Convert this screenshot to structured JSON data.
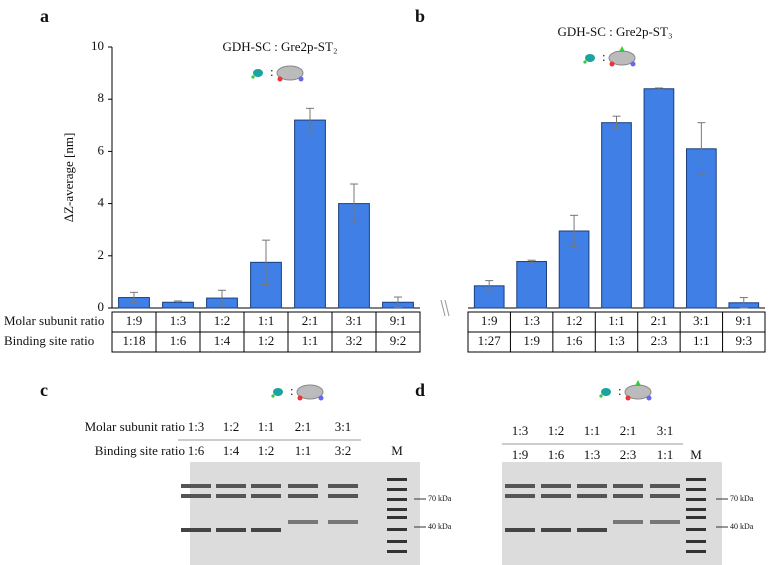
{
  "chart_data": [
    {
      "type": "bar",
      "panel": "a",
      "title": "GDH-SC : Gre2p-ST₂",
      "y_label": "ΔZ-average [nm]",
      "row_labels": [
        "Molar subunit ratio",
        "Binding site ratio"
      ],
      "categories": [
        "1:9",
        "1:3",
        "1:2",
        "1:1",
        "2:1",
        "3:1",
        "9:1"
      ],
      "binding_ratios": [
        "1:18",
        "1:6",
        "1:4",
        "1:2",
        "1:1",
        "3:2",
        "9:2"
      ],
      "values": [
        0.4,
        0.22,
        0.38,
        1.75,
        7.2,
        4.0,
        0.22
      ],
      "errors": [
        0.2,
        0.05,
        0.3,
        0.85,
        0.45,
        0.75,
        0.2
      ],
      "color": "#3f7fe6",
      "ylim": [
        0,
        10
      ],
      "yticks": [
        0,
        2,
        4,
        6,
        8,
        10
      ]
    },
    {
      "type": "bar",
      "panel": "b",
      "title": "GDH-SC : Gre2p-ST₃",
      "categories": [
        "1:9",
        "1:3",
        "1:2",
        "1:1",
        "2:1",
        "3:1",
        "9:1"
      ],
      "binding_ratios": [
        "1:27",
        "1:9",
        "1:6",
        "1:3",
        "2:3",
        "1:1",
        "9:3"
      ],
      "values": [
        0.85,
        1.78,
        2.95,
        7.1,
        8.4,
        6.1,
        0.2
      ],
      "errors": [
        0.2,
        0.05,
        0.6,
        0.25,
        0.03,
        1.0,
        0.2
      ],
      "color": "#3f7fe6",
      "ylim": [
        0,
        10
      ]
    }
  ],
  "gels": [
    {
      "panel": "c",
      "row_labels": [
        "Molar subunit ratio",
        "Binding site ratio"
      ],
      "rows": [
        [
          "1:3",
          "1:2",
          "1:1",
          "2:1",
          "3:1"
        ],
        [
          "1:6",
          "1:4",
          "1:2",
          "1:1",
          "3:2"
        ]
      ],
      "marker": "M",
      "markers": [
        "70 kDa",
        "40 kDa"
      ]
    },
    {
      "panel": "d",
      "rows": [
        [
          "1:3",
          "1:2",
          "1:1",
          "2:1",
          "3:1"
        ],
        [
          "1:9",
          "1:6",
          "1:3",
          "2:3",
          "1:1"
        ]
      ],
      "marker": "M",
      "markers": [
        "70 kDa",
        "40 kDa"
      ]
    }
  ]
}
